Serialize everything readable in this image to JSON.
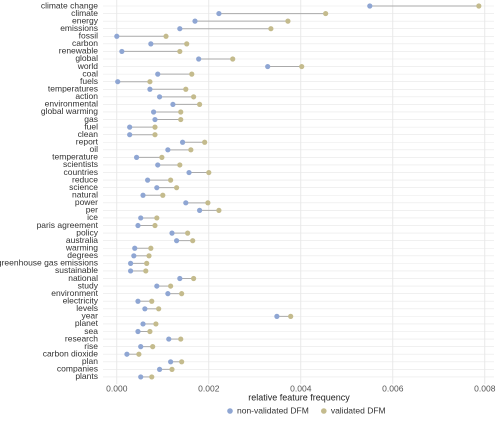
{
  "chart_data": {
    "type": "dumbbell",
    "categories": [
      "climate change",
      "climate",
      "energy",
      "emissions",
      "fossil",
      "carbon",
      "renewable",
      "global",
      "world",
      "coal",
      "fuels",
      "temperatures",
      "action",
      "environmental",
      "global warming",
      "gas",
      "fuel",
      "clean",
      "report",
      "oil",
      "temperature",
      "scientists",
      "countries",
      "reduce",
      "science",
      "natural",
      "power",
      "per",
      "ice",
      "paris agreement",
      "policy",
      "australia",
      "warming",
      "degrees",
      "greenhouse gas emissions",
      "sustainable",
      "national",
      "study",
      "environment",
      "electricity",
      "levels",
      "year",
      "planet",
      "sea",
      "research",
      "rise",
      "carbon dioxide",
      "plan",
      "companies",
      "plants"
    ],
    "series": [
      {
        "name": "non-validated DFM",
        "color": "#8fa6d3",
        "values": [
          0.0055,
          0.00222,
          0.0017,
          0.00137,
          0.0,
          0.00074,
          0.00011,
          0.00178,
          0.00328,
          0.00089,
          2e-05,
          0.00072,
          0.00093,
          0.00122,
          0.0008,
          0.00083,
          0.00028,
          0.00028,
          0.00143,
          0.00111,
          0.00043,
          0.00089,
          0.00157,
          0.00067,
          0.00087,
          0.00057,
          0.0015,
          0.0018,
          0.00052,
          0.00046,
          0.0012,
          0.0013,
          0.00039,
          0.00037,
          0.0003,
          0.0003,
          0.00137,
          0.00087,
          0.00111,
          0.00046,
          0.00061,
          0.00348,
          0.00057,
          0.00046,
          0.00113,
          0.00052,
          0.00022,
          0.00117,
          0.00093,
          0.00052
        ]
      },
      {
        "name": "validated DFM",
        "color": "#c4bb8d",
        "values": [
          0.00787,
          0.00454,
          0.00372,
          0.00335,
          0.00107,
          0.00152,
          0.00137,
          0.00252,
          0.00402,
          0.00163,
          0.00072,
          0.0015,
          0.00167,
          0.0018,
          0.00139,
          0.00139,
          0.00083,
          0.00083,
          0.00191,
          0.00161,
          0.00098,
          0.00137,
          0.002,
          0.00117,
          0.0013,
          0.001,
          0.00198,
          0.00222,
          0.00087,
          0.00083,
          0.00154,
          0.00165,
          0.00074,
          0.0007,
          0.00065,
          0.00063,
          0.00167,
          0.00117,
          0.00141,
          0.00076,
          0.00091,
          0.00378,
          0.00085,
          0.00072,
          0.00139,
          0.00078,
          0.00048,
          0.00141,
          0.0012,
          0.00076
        ]
      }
    ],
    "xlim": [
      -0.0003,
      0.0082
    ],
    "xticks": [
      {
        "value": 0,
        "label": "0.000"
      },
      {
        "value": 0.002,
        "label": "0.002"
      },
      {
        "value": 0.004,
        "label": "0.004"
      },
      {
        "value": 0.006,
        "label": "0.006"
      },
      {
        "value": 0.008,
        "label": "0.008"
      }
    ],
    "x_label": "relative feature frequency",
    "grid": true,
    "legend_position": "bottom"
  }
}
